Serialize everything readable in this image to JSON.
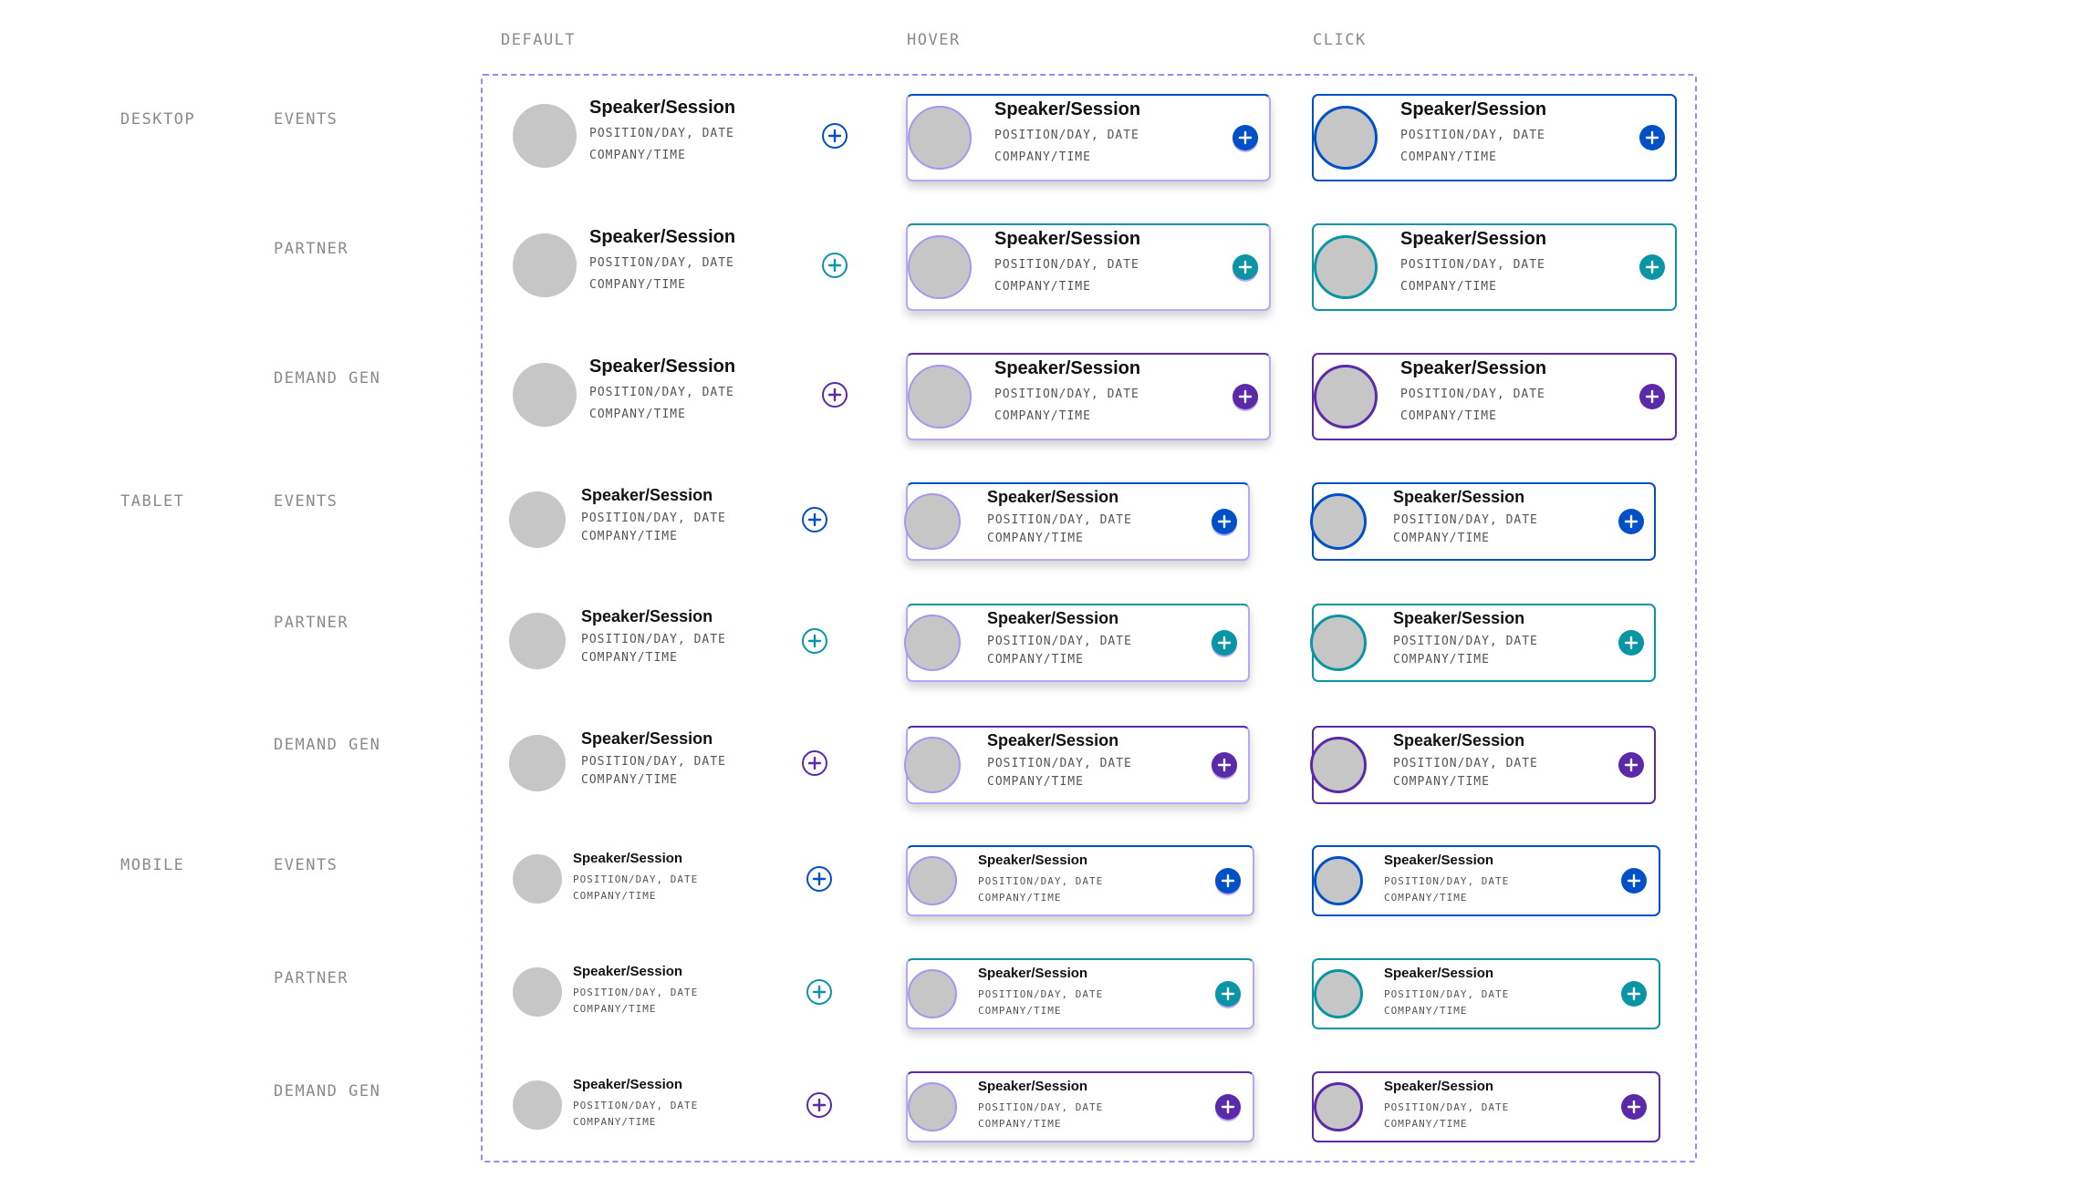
{
  "columns": [
    "DEFAULT",
    "HOVER",
    "CLICK"
  ],
  "colors": {
    "EVENTS": "#0050c8",
    "PARTNER": "#0a95a5",
    "DEMAND GEN": "#5a2aa8",
    "hover_border": "#b8a8f7",
    "frame": "#9b87f5"
  },
  "devices": [
    {
      "name": "DESKTOP",
      "rows": [
        "EVENTS",
        "PARTNER",
        "DEMAND GEN"
      ]
    },
    {
      "name": "TABLET",
      "rows": [
        "EVENTS",
        "PARTNER",
        "DEMAND GEN"
      ]
    },
    {
      "name": "MOBILE",
      "rows": [
        "EVENTS",
        "PARTNER",
        "DEMAND GEN"
      ]
    }
  ],
  "card": {
    "title": "Speaker/Session",
    "line1": "POSITION/DAY, DATE",
    "line2": "COMPANY/TIME",
    "action_icon": "plus-circle-icon"
  }
}
